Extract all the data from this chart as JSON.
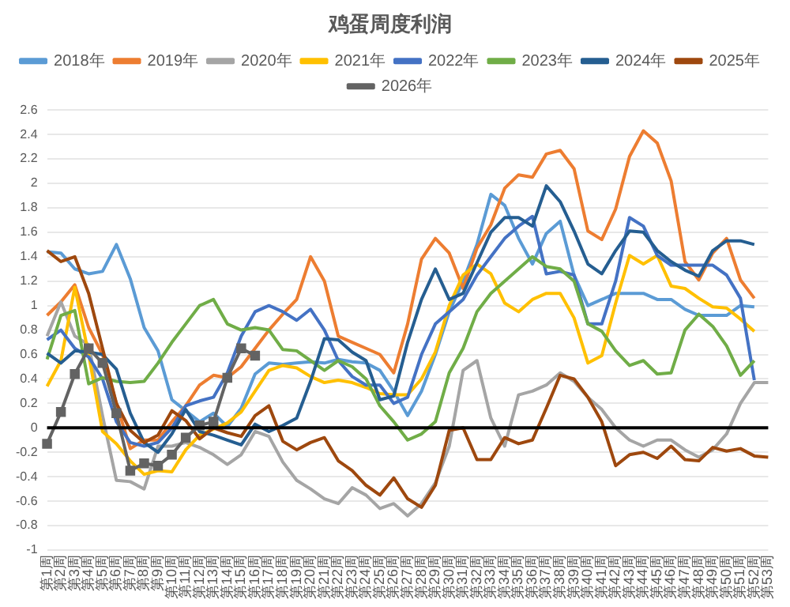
{
  "chart_data": {
    "type": "line",
    "title": "鸡蛋周度利润",
    "categories": [
      "第1周",
      "第2周",
      "第3周",
      "第4周",
      "第5周",
      "第6周",
      "第7周",
      "第8周",
      "第9周",
      "第10周",
      "第11周",
      "第12周",
      "第13周",
      "第14周",
      "第15周",
      "第16周",
      "第17周",
      "第18周",
      "第19周",
      "第20周",
      "第21周",
      "第22周",
      "第23周",
      "第24周",
      "第25周",
      "第26周",
      "第27周",
      "第28周",
      "第29周",
      "第30周",
      "第31周",
      "第32周",
      "第33周",
      "第34周",
      "第35周",
      "第36周",
      "第37周",
      "第38周",
      "第39周",
      "第40周",
      "第41周",
      "第42周",
      "第43周",
      "第44周",
      "第45周",
      "第46周",
      "第47周",
      "第48周",
      "第49周",
      "第50周",
      "第51周",
      "第52周",
      "第53周"
    ],
    "series": [
      {
        "name": "2018年",
        "color": "#5b9bd5",
        "values": [
          1.44,
          1.43,
          1.3,
          1.26,
          1.28,
          1.5,
          1.22,
          0.82,
          0.63,
          0.23,
          0.14,
          0.05,
          0.12,
          0.01,
          0.16,
          0.44,
          0.53,
          0.52,
          0.53,
          0.54,
          0.53,
          0.56,
          0.54,
          0.53,
          0.47,
          0.3,
          0.1,
          0.3,
          0.6,
          0.95,
          1.2,
          1.5,
          1.91,
          1.82,
          1.55,
          1.34,
          1.59,
          1.69,
          1.25,
          1.0,
          1.05,
          1.1,
          1.1,
          1.1,
          1.05,
          1.05,
          0.97,
          0.92,
          0.92,
          0.92,
          1.0,
          0.99,
          null
        ]
      },
      {
        "name": "2019年",
        "color": "#ed7d31",
        "values": [
          0.92,
          1.03,
          1.17,
          0.82,
          0.6,
          0.2,
          -0.17,
          -0.1,
          -0.1,
          0.05,
          0.18,
          0.35,
          0.43,
          0.41,
          0.5,
          0.65,
          0.8,
          0.93,
          1.05,
          1.4,
          1.2,
          0.75,
          0.7,
          0.65,
          0.6,
          0.45,
          0.85,
          1.38,
          1.55,
          1.43,
          1.14,
          1.47,
          1.66,
          1.96,
          2.07,
          2.05,
          2.24,
          2.27,
          2.12,
          1.61,
          1.54,
          1.79,
          2.22,
          2.43,
          2.33,
          2.02,
          1.36,
          1.21,
          1.43,
          1.55,
          1.21,
          1.06,
          null
        ]
      },
      {
        "name": "2020年",
        "color": "#a5a5a5",
        "values": [
          0.75,
          1.03,
          0.75,
          0.68,
          0.1,
          -0.43,
          -0.44,
          -0.5,
          -0.15,
          -0.15,
          -0.12,
          -0.16,
          -0.22,
          -0.3,
          -0.22,
          -0.03,
          -0.07,
          -0.28,
          -0.43,
          -0.5,
          -0.58,
          -0.62,
          -0.49,
          -0.55,
          -0.66,
          -0.62,
          -0.72,
          -0.62,
          -0.45,
          -0.15,
          0.47,
          0.55,
          0.08,
          -0.15,
          0.27,
          0.3,
          0.35,
          0.45,
          0.38,
          0.25,
          0.15,
          0.0,
          -0.1,
          -0.15,
          -0.1,
          -0.1,
          -0.18,
          -0.24,
          -0.18,
          -0.05,
          0.2,
          0.37,
          0.37
        ]
      },
      {
        "name": "2021年",
        "color": "#ffc000",
        "values": [
          0.34,
          0.55,
          1.15,
          0.6,
          -0.03,
          -0.13,
          -0.27,
          -0.38,
          -0.35,
          -0.36,
          -0.18,
          -0.06,
          -0.01,
          0.04,
          0.13,
          0.3,
          0.47,
          0.51,
          0.49,
          0.42,
          0.37,
          0.39,
          0.37,
          0.33,
          0.28,
          0.27,
          0.27,
          0.4,
          0.62,
          1.0,
          1.25,
          1.34,
          1.26,
          1.02,
          0.95,
          1.05,
          1.1,
          1.1,
          0.9,
          0.53,
          0.59,
          1.02,
          1.41,
          1.34,
          1.41,
          1.16,
          1.14,
          1.06,
          0.99,
          0.98,
          0.89,
          0.79,
          null
        ]
      },
      {
        "name": "2022年",
        "color": "#4472c4",
        "values": [
          0.72,
          0.8,
          0.65,
          0.58,
          0.4,
          0.05,
          -0.12,
          -0.15,
          -0.12,
          0.0,
          0.18,
          0.22,
          0.25,
          0.45,
          0.75,
          0.95,
          1.0,
          0.95,
          0.88,
          0.97,
          0.8,
          0.55,
          0.42,
          0.35,
          0.35,
          0.2,
          0.25,
          0.6,
          0.85,
          0.95,
          1.05,
          1.25,
          1.4,
          1.55,
          1.65,
          1.73,
          1.26,
          1.28,
          1.25,
          0.85,
          0.85,
          1.2,
          1.72,
          1.65,
          1.41,
          1.33,
          1.33,
          1.33,
          1.33,
          1.25,
          1.06,
          0.39,
          null
        ]
      },
      {
        "name": "2023年",
        "color": "#70ad47",
        "values": [
          0.56,
          0.92,
          0.96,
          0.36,
          0.41,
          0.38,
          0.37,
          0.38,
          0.53,
          0.7,
          0.85,
          1.0,
          1.05,
          0.85,
          0.8,
          0.82,
          0.8,
          0.64,
          0.63,
          0.55,
          0.47,
          0.55,
          0.5,
          0.4,
          0.18,
          0.05,
          -0.1,
          -0.05,
          0.05,
          0.45,
          0.65,
          0.95,
          1.1,
          1.2,
          1.3,
          1.4,
          1.32,
          1.3,
          1.2,
          0.85,
          0.79,
          0.63,
          0.51,
          0.55,
          0.44,
          0.45,
          0.8,
          0.93,
          0.83,
          0.67,
          0.43,
          0.55,
          null
        ]
      },
      {
        "name": "2024年",
        "color": "#255e91",
        "values": [
          0.61,
          0.53,
          0.63,
          0.62,
          0.6,
          0.48,
          0.12,
          -0.12,
          -0.2,
          -0.05,
          0.15,
          -0.03,
          -0.06,
          -0.1,
          -0.14,
          0.03,
          -0.03,
          0.02,
          0.08,
          0.38,
          0.73,
          0.72,
          0.62,
          0.55,
          0.23,
          0.26,
          0.7,
          1.05,
          1.3,
          1.05,
          1.1,
          1.35,
          1.6,
          1.72,
          1.72,
          1.65,
          1.98,
          1.85,
          1.61,
          1.34,
          1.26,
          1.45,
          1.61,
          1.6,
          1.45,
          1.36,
          1.29,
          1.24,
          1.45,
          1.53,
          1.53,
          1.5,
          null
        ]
      },
      {
        "name": "2025年",
        "color": "#9e480e",
        "values": [
          1.45,
          1.36,
          1.4,
          1.1,
          0.65,
          0.2,
          -0.02,
          -0.12,
          -0.06,
          0.14,
          0.06,
          -0.09,
          0.0,
          -0.04,
          -0.07,
          0.1,
          0.18,
          -0.11,
          -0.18,
          -0.12,
          -0.08,
          -0.27,
          -0.35,
          -0.47,
          -0.55,
          -0.41,
          -0.58,
          -0.65,
          -0.47,
          -0.02,
          0.0,
          -0.26,
          -0.26,
          -0.08,
          -0.13,
          -0.1,
          0.16,
          0.43,
          0.4,
          0.25,
          0.05,
          -0.31,
          -0.22,
          -0.2,
          -0.25,
          -0.15,
          -0.26,
          -0.27,
          -0.16,
          -0.19,
          -0.17,
          -0.23,
          -0.24
        ]
      },
      {
        "name": "2026年",
        "color": "#636363",
        "marker": "square",
        "values": [
          -0.13,
          0.13,
          0.44,
          0.65,
          0.53,
          0.12,
          -0.35,
          -0.29,
          -0.31,
          -0.22,
          -0.08,
          0.02,
          0.05,
          0.41,
          0.65,
          0.59,
          null,
          null,
          null,
          null,
          null,
          null,
          null,
          null,
          null,
          null,
          null,
          null,
          null,
          null,
          null,
          null,
          null,
          null,
          null,
          null,
          null,
          null,
          null,
          null,
          null,
          null,
          null,
          null,
          null,
          null,
          null,
          null,
          null,
          null,
          null,
          null,
          null
        ]
      }
    ],
    "ylim": [
      -1,
      2.6
    ],
    "yticks": [
      -1,
      -0.8,
      -0.6,
      -0.4,
      -0.2,
      0,
      0.2,
      0.4,
      0.6,
      0.8,
      1,
      1.2,
      1.4,
      1.6,
      1.8,
      2,
      2.2,
      2.4,
      2.6
    ],
    "ref_lines": [
      {
        "axis": "y",
        "value": 0,
        "color": "#000000"
      }
    ],
    "grid": "y",
    "legend": "top"
  }
}
